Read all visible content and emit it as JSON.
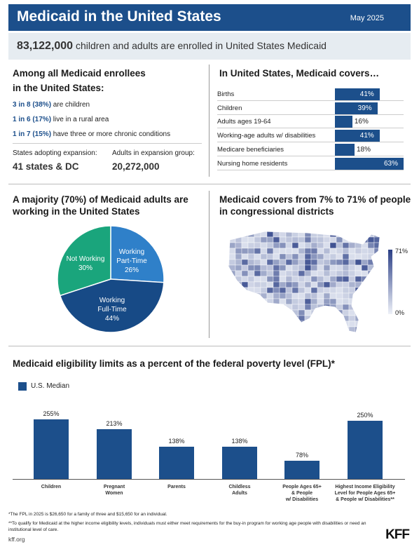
{
  "header": {
    "title": "Medicaid in the United States",
    "date": "May 2025"
  },
  "banner": {
    "number": "83,122,000",
    "text": " children and adults are enrolled in United States Medicaid"
  },
  "enrollees": {
    "heading_line1": "Among all Medicaid enrollees",
    "heading_line2": "in the United States:",
    "stats": [
      {
        "highlight": "3 in 8 (38%)",
        "text": " are children"
      },
      {
        "highlight": "1 in 6 (17%)",
        "text": " live in a rural area"
      },
      {
        "highlight": "1 in 7 (15%)",
        "text": " have three or more chronic conditions"
      }
    ],
    "states_label": "States adopting expansion:",
    "states_value": "41 states & DC",
    "adults_label": "Adults in expansion group:",
    "adults_value": "20,272,000"
  },
  "covers": {
    "heading": "In United States, Medicaid covers…",
    "rows": [
      {
        "label": "Births",
        "value": 41,
        "display": "41%"
      },
      {
        "label": "Children",
        "value": 39,
        "display": "39%"
      },
      {
        "label": "Adults ages 19-64",
        "value": 16,
        "display": "16%"
      },
      {
        "label": "Working-age adults w/ disabilities",
        "value": 41,
        "display": "41%"
      },
      {
        "label": "Medicare beneficiaries",
        "value": 18,
        "display": "18%"
      },
      {
        "label": "Nursing home residents",
        "value": 63,
        "display": "63%"
      }
    ]
  },
  "working": {
    "heading_line1": "A majority (70%) of Medicaid adults are",
    "heading_line2": "working in the United States"
  },
  "districts": {
    "heading_line1": "Medicaid covers from 7% to 71% of people",
    "heading_line2": "in congressional districts",
    "scale_max": "71%",
    "scale_min": "0%",
    "colors": {
      "low": "#eef1f8",
      "high": "#2b3f86"
    }
  },
  "eligibility": {
    "heading": "Medicaid eligibility limits as a percent of the federal poverty level (FPL)*",
    "legend": "U.S. Median"
  },
  "chart_data": [
    {
      "type": "bar",
      "orientation": "horizontal",
      "title": "In United States, Medicaid covers…",
      "categories": [
        "Births",
        "Children",
        "Adults ages 19-64",
        "Working-age adults w/ disabilities",
        "Medicare beneficiaries",
        "Nursing home residents"
      ],
      "values": [
        41,
        39,
        16,
        41,
        18,
        63
      ],
      "unit": "%"
    },
    {
      "type": "pie",
      "title": "A majority (70%) of Medicaid adults are working in the United States",
      "slices": [
        {
          "label_line1": "Working",
          "label_line2": "Part-Time",
          "value": 26,
          "display": "26%",
          "color": "#2f80c9"
        },
        {
          "label_line1": "Working",
          "label_line2": "Full-Time",
          "value": 44,
          "display": "44%",
          "color": "#174a86"
        },
        {
          "label_line1": "Not Working",
          "label_line2": "",
          "value": 30,
          "display": "30%",
          "color": "#1aa57c"
        }
      ]
    },
    {
      "type": "bar",
      "title": "Medicaid eligibility limits as a percent of the federal poverty level (FPL)*",
      "series": [
        {
          "name": "U.S. Median",
          "values": [
            255,
            213,
            138,
            138,
            78,
            250
          ]
        }
      ],
      "categories": [
        [
          "Children"
        ],
        [
          "Pregnant",
          "Women"
        ],
        [
          "Parents"
        ],
        [
          "Childless",
          "Adults"
        ],
        [
          "People Ages 65+",
          "& People",
          "w/ Disabilities"
        ],
        [
          "Highest Income Eligibility",
          "Level for People Ages 65+",
          "& People w/ Disabilities**"
        ]
      ],
      "labels": [
        "255%",
        "213%",
        "138%",
        "138%",
        "78%",
        "250%"
      ],
      "ylim": [
        0,
        255
      ],
      "color": "#1c4f8b"
    }
  ],
  "footnotes": {
    "fpl": "*The FPL in 2025 is $26,650 for a family of three and $15,650 for an individual.",
    "qualify_line1": "**To qualify for Medicaid at the higher income eligibility levels, individuals must either meet requirements for the buy-in program for working age people with disabilities or need an",
    "qualify_line2": "institutional level of care."
  },
  "footer": {
    "site": "kff.org",
    "logo_text": "KFF"
  }
}
